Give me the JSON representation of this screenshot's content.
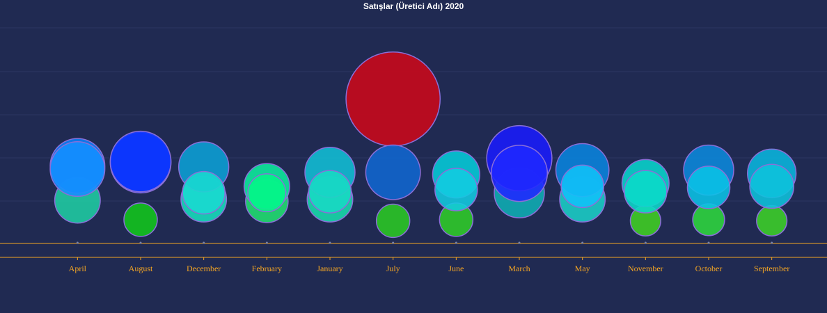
{
  "chart_data": {
    "type": "scatter",
    "title": "Satışlar (Üretici Adı) 2020",
    "categories": [
      "April",
      "August",
      "December",
      "February",
      "January",
      "July",
      "June",
      "March",
      "May",
      "November",
      "October",
      "September"
    ],
    "grid": true,
    "legend": "none",
    "xlabel": "",
    "ylabel": "",
    "series": [
      {
        "values": [
          {
            "category": "April",
            "y": 200,
            "size": 30,
            "color": "#1fc5a0"
          },
          {
            "category": "August",
            "y": 110,
            "size": 22,
            "color": "#12c01e"
          },
          {
            "category": "December",
            "y": 205,
            "size": 30,
            "color": "#18d6b8"
          },
          {
            "category": "February",
            "y": 195,
            "size": 28,
            "color": "#22d870"
          },
          {
            "category": "January",
            "y": 205,
            "size": 30,
            "color": "#19d4a8"
          },
          {
            "category": "July",
            "y": 105,
            "size": 22,
            "color": "#2ac226"
          },
          {
            "category": "June",
            "y": 110,
            "size": 22,
            "color": "#2fc52a"
          },
          {
            "category": "March",
            "y": 235,
            "size": 33,
            "color": "#10a8b0"
          },
          {
            "category": "May",
            "y": 205,
            "size": 30,
            "color": "#1bc8c2"
          },
          {
            "category": "November",
            "y": 105,
            "size": 20,
            "color": "#3fc925"
          },
          {
            "category": "October",
            "y": 110,
            "size": 21,
            "color": "#2ecf3f"
          },
          {
            "category": "September",
            "y": 105,
            "size": 20,
            "color": "#3cca2a"
          }
        ]
      },
      {
        "values": [
          {
            "category": "April",
            "y": 360,
            "size": 36,
            "color": "#0d7ef5"
          },
          {
            "category": "August",
            "y": 375,
            "size": 40,
            "color": "#0a2ff8"
          },
          {
            "category": "December",
            "y": 355,
            "size": 33,
            "color": "#0d9bd0"
          },
          {
            "category": "February",
            "y": 265,
            "size": 30,
            "color": "#0ee49a"
          },
          {
            "category": "January",
            "y": 330,
            "size": 33,
            "color": "#12b8d0"
          },
          {
            "category": "July",
            "y": 670,
            "size": 62,
            "color": "#c40a1c"
          },
          {
            "category": "June",
            "y": 320,
            "size": 31,
            "color": "#06c4d4"
          },
          {
            "category": "March",
            "y": 395,
            "size": 43,
            "color": "#1a1cf5"
          },
          {
            "category": "May",
            "y": 340,
            "size": 35,
            "color": "#0b80d8"
          },
          {
            "category": "November",
            "y": 280,
            "size": 31,
            "color": "#0acdc8"
          },
          {
            "category": "October",
            "y": 340,
            "size": 33,
            "color": "#0d84d6"
          },
          {
            "category": "September",
            "y": 325,
            "size": 32,
            "color": "#0bb0d8"
          }
        ]
      },
      {
        "values": [
          {
            "category": "April",
            "y": 345,
            "size": 36,
            "color": "#1590ff"
          },
          {
            "category": "August",
            "y": 380,
            "size": 40,
            "color": "#0c38ff"
          },
          {
            "category": "December",
            "y": 235,
            "size": 28,
            "color": "#19d9d0"
          },
          {
            "category": "February",
            "y": 235,
            "size": 25,
            "color": "#05f588"
          },
          {
            "category": "January",
            "y": 240,
            "size": 28,
            "color": "#18d9c4"
          },
          {
            "category": "July",
            "y": 330,
            "size": 36,
            "color": "#1066d0"
          },
          {
            "category": "June",
            "y": 250,
            "size": 28,
            "color": "#12cbe0"
          },
          {
            "category": "March",
            "y": 325,
            "size": 37,
            "color": "#1f28ff"
          },
          {
            "category": "May",
            "y": 265,
            "size": 28,
            "color": "#11c2f8"
          },
          {
            "category": "November",
            "y": 240,
            "size": 28,
            "color": "#0bd9c9"
          },
          {
            "category": "October",
            "y": 260,
            "size": 28,
            "color": "#0ac3e6"
          },
          {
            "category": "September",
            "y": 265,
            "size": 29,
            "color": "#0ec3dc"
          }
        ]
      }
    ],
    "baseline_markers": [
      0,
      0,
      0,
      0,
      0,
      0,
      0,
      0,
      0,
      0,
      0,
      0
    ]
  },
  "colors": {
    "background": "#202a52",
    "axis": "#f5a623",
    "grid": "#2b3761",
    "title": "#ffffff",
    "bubble_outline": "#8a6fd8"
  }
}
